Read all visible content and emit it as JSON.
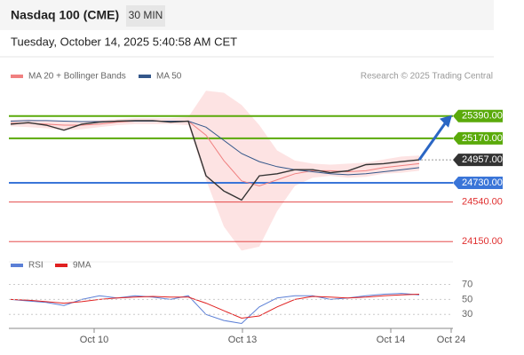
{
  "header": {
    "title": "Nasdaq 100 (CME)",
    "interval": "30 MIN",
    "timestamp": "Tuesday, October 14, 2025 5:40:58 AM CET"
  },
  "chart_data": [
    {
      "type": "line",
      "credit": "Research © 2025 Trading Central",
      "x": [
        0,
        1,
        2,
        3,
        4,
        5,
        6,
        7,
        8,
        9,
        10,
        11,
        12,
        13,
        14,
        15,
        16,
        17,
        18,
        19,
        20,
        21,
        22,
        23
      ],
      "xlim": [
        0,
        24.9
      ],
      "xticks": [
        {
          "value": 4.7,
          "label": "Oct 10"
        },
        {
          "value": 13.05,
          "label": "Oct 13"
        },
        {
          "value": 21.4,
          "label": "Oct 14"
        },
        {
          "value": 24.8,
          "label": "Oct 24"
        }
      ],
      "ylim": [
        24020,
        25730
      ],
      "close": {
        "color": "#333333",
        "values": [
          25310,
          25325,
          25300,
          25250,
          25310,
          25330,
          25340,
          25345,
          25345,
          25330,
          25340,
          24800,
          24650,
          24560,
          24800,
          24820,
          24860,
          24860,
          24830,
          24850,
          24910,
          24920,
          24940,
          24957
        ]
      },
      "series": [
        {
          "name": "MA 20 + Bollinger Bands",
          "color": "#f08080",
          "values": [
            25320,
            25320,
            25310,
            25300,
            25300,
            25310,
            25330,
            25340,
            25340,
            25340,
            25340,
            25200,
            24950,
            24750,
            24700,
            24760,
            24820,
            24850,
            24850,
            24840,
            24850,
            24880,
            24900,
            24920
          ]
        },
        {
          "name": "MA 50",
          "color": "#34578a",
          "values": [
            25340,
            25345,
            25345,
            25340,
            25335,
            25335,
            25340,
            25340,
            25340,
            25340,
            25340,
            25280,
            25150,
            25020,
            24940,
            24890,
            24860,
            24840,
            24820,
            24810,
            24820,
            24840,
            24860,
            24880
          ]
        }
      ],
      "bands": {
        "color": "#fde3e3",
        "upper": [
          25350,
          25360,
          25340,
          25340,
          25340,
          25350,
          25360,
          25370,
          25370,
          25370,
          25380,
          25640,
          25620,
          25500,
          25300,
          25050,
          24950,
          24920,
          24910,
          24920,
          24930,
          24960,
          24990,
          25000
        ],
        "lower": [
          25290,
          25280,
          25270,
          25250,
          25260,
          25280,
          25300,
          25310,
          25310,
          25310,
          25300,
          24760,
          24300,
          24060,
          24100,
          24450,
          24700,
          24780,
          24800,
          24780,
          24790,
          24820,
          24830,
          24850
        ]
      },
      "levels": [
        {
          "value": 25390,
          "label": "25390.00",
          "color": "#5aaa0a",
          "style": "box"
        },
        {
          "value": 25170,
          "label": "25170.00",
          "color": "#5aaa0a",
          "style": "box"
        },
        {
          "value": 24957,
          "label": "24957.00",
          "color": "#333333",
          "style": "dark"
        },
        {
          "value": 24730,
          "label": "24730.00",
          "color": "#3a75d8",
          "style": "box"
        },
        {
          "value": 24540,
          "label": "24540.00",
          "color": "#e03030",
          "style": "text"
        },
        {
          "value": 24150,
          "label": "24150.00",
          "color": "#e03030",
          "style": "text"
        }
      ]
    },
    {
      "type": "line",
      "ylim": [
        15,
        80
      ],
      "yticks": [
        30,
        50,
        70
      ],
      "series": [
        {
          "name": "RSI",
          "color": "#5b7fd6",
          "values": [
            50,
            48,
            46,
            42,
            50,
            55,
            52,
            55,
            53,
            50,
            55,
            30,
            22,
            18,
            40,
            52,
            55,
            55,
            50,
            52,
            55,
            57,
            58,
            56
          ]
        },
        {
          "name": "9MA",
          "color": "#e02020",
          "values": [
            50,
            49,
            47,
            45,
            47,
            50,
            52,
            53,
            54,
            53,
            53,
            45,
            35,
            25,
            28,
            40,
            50,
            54,
            53,
            52,
            53,
            55,
            56,
            57
          ]
        }
      ]
    }
  ]
}
